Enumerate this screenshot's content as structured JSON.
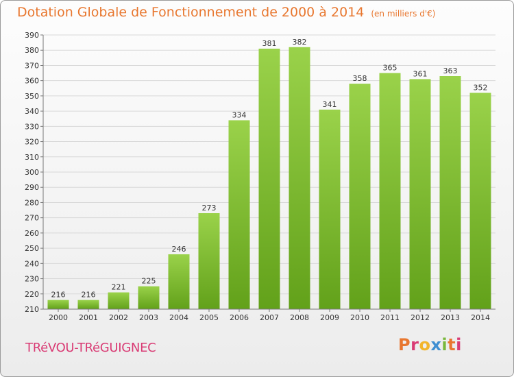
{
  "header": {
    "title": "Dotation Globale de Fonctionnement de 2000 à 2014",
    "unit": "(en milliers d'€)"
  },
  "footer": {
    "commune": "TRéVOU-TRéGUIGNEC",
    "logo_letters": [
      "P",
      "r",
      "o",
      "x",
      "i",
      "t",
      "i"
    ],
    "logo_colors": [
      "#e8772f",
      "#d93b74",
      "#f2b52a",
      "#3f8fd2",
      "#7ab83d",
      "#e8772f",
      "#d93b74"
    ]
  },
  "chart_data": {
    "type": "bar",
    "categories": [
      "2000",
      "2001",
      "2002",
      "2003",
      "2004",
      "2005",
      "2006",
      "2007",
      "2008",
      "2009",
      "2010",
      "2011",
      "2012",
      "2013",
      "2014"
    ],
    "values": [
      216,
      216,
      221,
      225,
      246,
      273,
      334,
      381,
      382,
      341,
      358,
      365,
      361,
      363,
      352
    ],
    "ylim": [
      210,
      390
    ],
    "yticks": [
      210,
      220,
      230,
      240,
      250,
      260,
      270,
      280,
      290,
      300,
      310,
      320,
      330,
      340,
      350,
      360,
      370,
      380,
      390
    ],
    "grid": true,
    "data_labels": true,
    "bar_color_top": "#9ad24a",
    "bar_color_bottom": "#62a11a",
    "label_color": "#333333"
  }
}
